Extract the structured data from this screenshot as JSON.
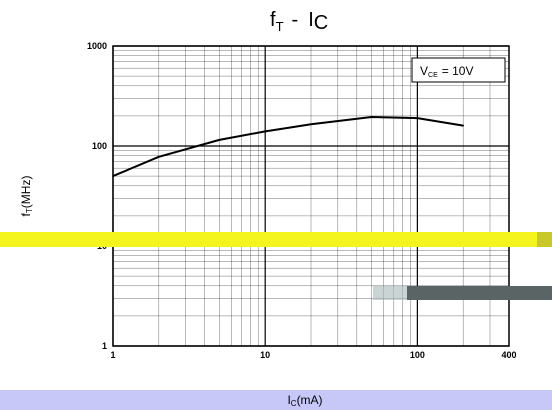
{
  "chart_data": {
    "type": "line",
    "title_main": "f",
    "title_main_sub": "T",
    "title_sep": "-",
    "title_second": "I",
    "title_second_sub": "C",
    "xlabel_main": "I",
    "xlabel_sub": "C",
    "xlabel_unit": "(mA)",
    "ylabel_main": "f",
    "ylabel_sub": "T",
    "ylabel_unit": "(MHz)",
    "annotation_main": "V",
    "annotation_sub": "CE",
    "annotation_value": "= 10V",
    "x_scale": "log",
    "y_scale": "log",
    "xlim": [
      1,
      400
    ],
    "ylim": [
      1,
      1000
    ],
    "grid": true,
    "xticks": [
      {
        "value": 1,
        "label": "1"
      },
      {
        "value": 10,
        "label": "10"
      },
      {
        "value": 100,
        "label": "100"
      },
      {
        "value": 400,
        "label": "400"
      }
    ],
    "yticks": [
      {
        "value": 1,
        "label": "1"
      },
      {
        "value": 10,
        "label": "10"
      },
      {
        "value": 100,
        "label": "100"
      },
      {
        "value": 1000,
        "label": "1000"
      }
    ],
    "series": [
      {
        "x": [
          1,
          2,
          5,
          10,
          20,
          50,
          100,
          200
        ],
        "y": [
          50,
          78,
          115,
          140,
          165,
          195,
          190,
          160
        ]
      }
    ],
    "colors": {
      "highlight_band": "#f4f41e",
      "highlight_band_edge": "#c8c82a",
      "xlabel_band": "#c8c8f8",
      "gray_bar": "#5a6464",
      "gray_bar_light": "#a8b8b8",
      "line": "#000000"
    }
  }
}
